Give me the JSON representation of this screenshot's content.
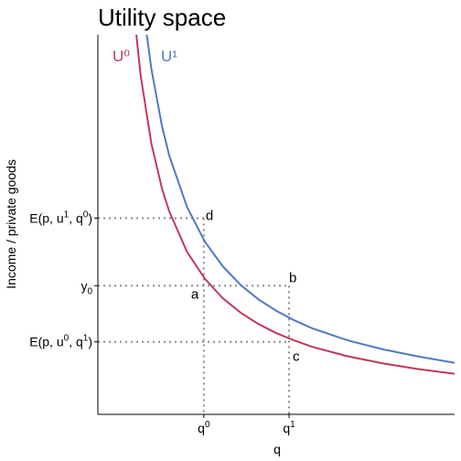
{
  "chart_data": {
    "type": "line",
    "title": "Utility space",
    "xlabel": "q",
    "ylabel": "Income / private goods",
    "xlim": [
      0,
      10
    ],
    "ylim": [
      0,
      10
    ],
    "grid": false,
    "series": [
      {
        "name": "U⁰",
        "color": "#c0395a",
        "x": [
          1.0,
          1.2,
          1.5,
          1.8,
          2.0,
          2.5,
          3.0,
          3.5,
          4.0,
          4.5,
          5.0,
          5.5,
          6.0,
          7.0,
          8.0,
          9.0,
          10.0
        ],
        "y": [
          10.7,
          8.92,
          7.13,
          5.94,
          5.35,
          4.28,
          3.57,
          3.06,
          2.68,
          2.38,
          2.14,
          1.95,
          1.78,
          1.53,
          1.34,
          1.19,
          1.07
        ]
      },
      {
        "name": "U¹",
        "color": "#4f79c3",
        "x": [
          1.3,
          1.5,
          1.8,
          2.0,
          2.5,
          3.0,
          3.5,
          4.0,
          4.5,
          5.0,
          5.5,
          6.0,
          7.0,
          8.0,
          9.0,
          10.0
        ],
        "y": [
          10.5,
          9.1,
          7.58,
          6.82,
          5.46,
          4.55,
          3.9,
          3.41,
          3.03,
          2.73,
          2.48,
          2.27,
          1.95,
          1.71,
          1.52,
          1.36
        ]
      }
    ],
    "x_ticks": [
      {
        "id": "q0",
        "value": 2.97,
        "base": "q",
        "sup": "0"
      },
      {
        "id": "q1",
        "value": 5.36,
        "base": "q",
        "sup": "1"
      }
    ],
    "y_ticks": [
      {
        "id": "E1",
        "value": 5.17,
        "parts": [
          "E(p, u",
          "1",
          ", q",
          "0",
          ")"
        ]
      },
      {
        "id": "y0",
        "value": 3.39,
        "parts": [
          "y",
          "0"
        ]
      },
      {
        "id": "E0",
        "value": 1.91,
        "parts": [
          "E(p, u",
          "0",
          ", q",
          "1",
          ")"
        ]
      }
    ],
    "points": [
      {
        "label": "a",
        "x": 2.97,
        "y": 3.39
      },
      {
        "label": "b",
        "x": 5.36,
        "y": 3.39
      },
      {
        "label": "c",
        "x": 5.36,
        "y": 1.91
      },
      {
        "label": "d",
        "x": 2.97,
        "y": 5.17
      }
    ],
    "guides": {
      "horizontal": [
        5.17,
        3.39,
        1.91
      ],
      "vertical": [
        2.97,
        5.36
      ]
    }
  }
}
